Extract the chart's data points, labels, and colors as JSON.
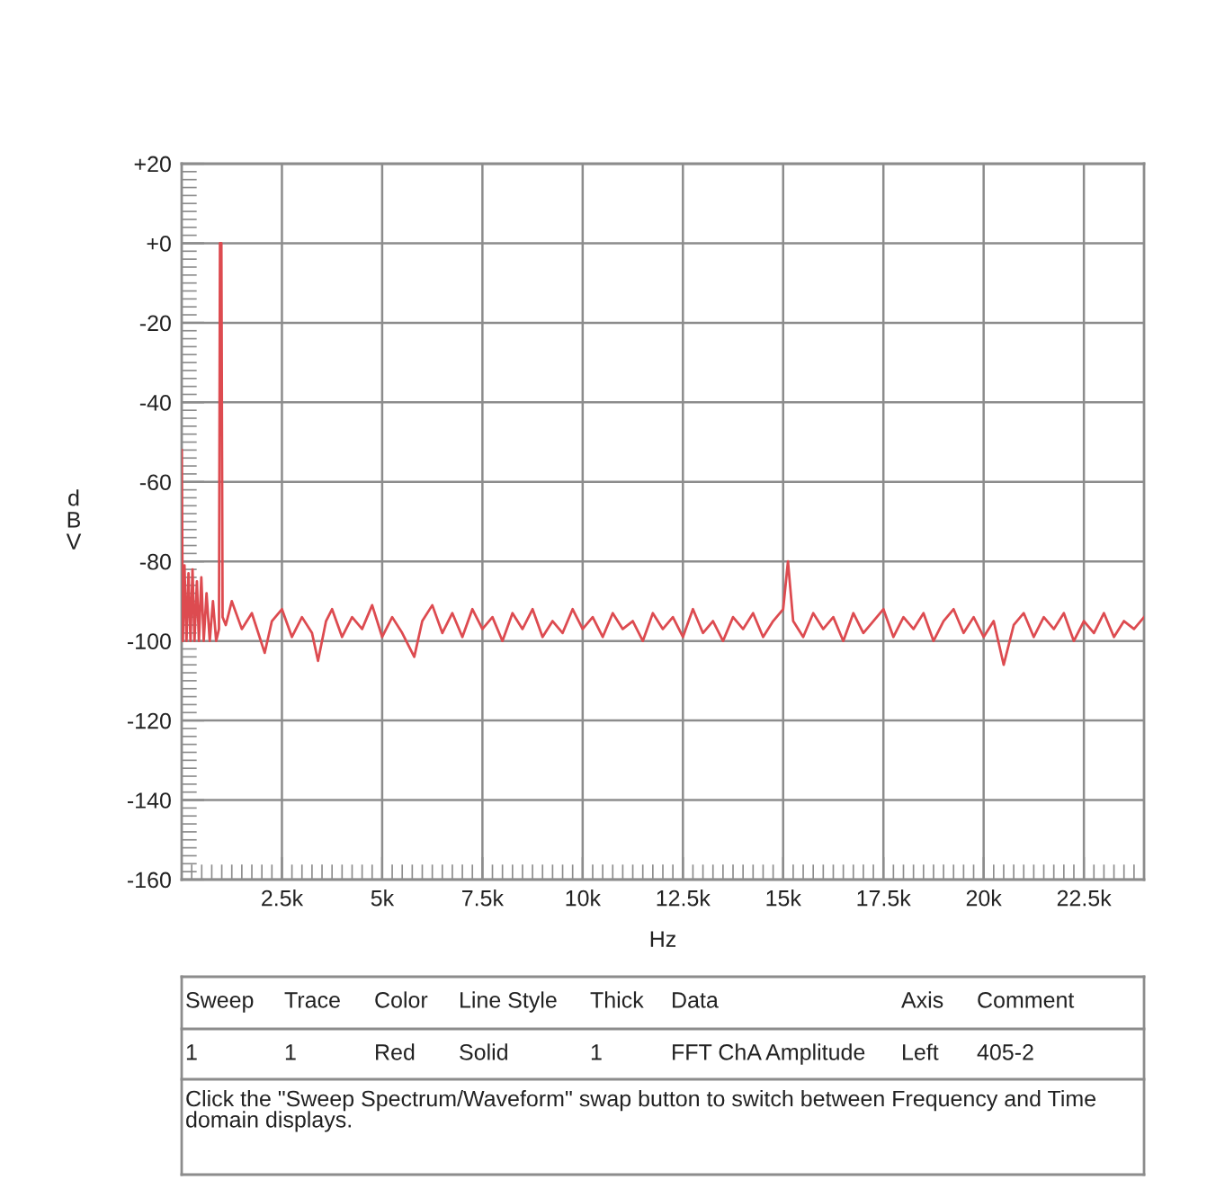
{
  "chart_data": {
    "type": "line",
    "xlabel": "Hz",
    "ylabel": "dBV",
    "x": [
      0,
      30,
      70,
      120,
      170,
      220,
      270,
      320,
      380,
      430,
      490,
      550,
      620,
      700,
      780,
      860,
      930,
      955,
      990,
      1020,
      1100,
      1250,
      1500,
      1750,
      2070,
      2250,
      2500,
      2750,
      3000,
      3250,
      3400,
      3600,
      3750,
      4000,
      4250,
      4500,
      4750,
      5000,
      5250,
      5500,
      5800,
      6000,
      6250,
      6500,
      6750,
      7000,
      7250,
      7500,
      7750,
      8000,
      8250,
      8500,
      8750,
      9000,
      9250,
      9500,
      9750,
      10000,
      10250,
      10500,
      10750,
      11000,
      11250,
      11500,
      11750,
      12000,
      12250,
      12500,
      12750,
      13000,
      13250,
      13500,
      13750,
      14000,
      14250,
      14500,
      14750,
      15000,
      15120,
      15250,
      15500,
      15750,
      16000,
      16250,
      16500,
      16750,
      17000,
      17250,
      17500,
      17750,
      18000,
      18250,
      18500,
      18750,
      19000,
      19250,
      19500,
      19750,
      20000,
      20250,
      20500,
      20750,
      21000,
      21250,
      21500,
      21750,
      22000,
      22250,
      22500,
      22750,
      23000,
      23250,
      23500,
      23750,
      24000
    ],
    "series": [
      {
        "color": "#dd4b50",
        "values": [
          -52,
          -100,
          -81,
          -100,
          -83,
          -100,
          -82,
          -100,
          -85,
          -100,
          -84,
          -100,
          -88,
          -100,
          -90,
          -100,
          -97,
          0,
          0,
          -94,
          -96,
          -90,
          -97,
          -93,
          -103,
          -95,
          -92,
          -99,
          -94,
          -98,
          -105,
          -95,
          -92,
          -99,
          -94,
          -97,
          -91,
          -99,
          -94,
          -98,
          -104,
          -95,
          -91,
          -98,
          -93,
          -99,
          -92,
          -97,
          -94,
          -100,
          -93,
          -97,
          -92,
          -99,
          -95,
          -98,
          -92,
          -97,
          -94,
          -99,
          -93,
          -97,
          -95,
          -100,
          -93,
          -97,
          -94,
          -99,
          -92,
          -98,
          -95,
          -100,
          -94,
          -97,
          -93,
          -99,
          -95,
          -92,
          -80,
          -95,
          -99,
          -93,
          -97,
          -94,
          -100,
          -93,
          -98,
          -95,
          -92,
          -99,
          -94,
          -97,
          -93,
          -100,
          -95,
          -92,
          -98,
          -94,
          -99,
          -95,
          -106,
          -96,
          -93,
          -99,
          -94,
          -97,
          -93,
          -100,
          -95,
          -98,
          -93,
          -99,
          -95,
          -97,
          -94
        ]
      }
    ],
    "xlim": [
      0,
      24000
    ],
    "xticks": [
      {
        "value": 2500,
        "label": "2.5k"
      },
      {
        "value": 5000,
        "label": "5k"
      },
      {
        "value": 7500,
        "label": "7.5k"
      },
      {
        "value": 10000,
        "label": "10k"
      },
      {
        "value": 12500,
        "label": "12.5k"
      },
      {
        "value": 15000,
        "label": "15k"
      },
      {
        "value": 17500,
        "label": "17.5k"
      },
      {
        "value": 20000,
        "label": "20k"
      },
      {
        "value": 22500,
        "label": "22.5k"
      }
    ],
    "ylim": [
      -160,
      20
    ],
    "yticks": [
      {
        "value": 20,
        "label": "+20"
      },
      {
        "value": 0,
        "label": "+0"
      },
      -20,
      -40,
      -60,
      -80,
      -100,
      -120,
      -140,
      -160
    ],
    "grid": true,
    "line_style": "solid",
    "annotations": [
      "Sweep",
      "Trace",
      "Color",
      "Line Style",
      "Thick",
      "Data",
      "Axis",
      "Comment",
      "1",
      "1",
      "Red",
      "Solid",
      "1",
      "FFT ChA Amplitude",
      "Left",
      "405-2",
      "Click the \"Sweep Spectrum/Waveform\" swap button to switch between Frequency and Time domain displays."
    ]
  }
}
